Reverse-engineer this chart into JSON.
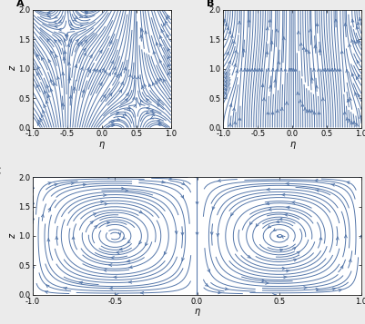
{
  "title_A": "A",
  "title_B": "B",
  "title_C": "C",
  "xlabel": "η",
  "ylabel": "z",
  "xlim": [
    -1.0,
    1.0
  ],
  "ylim": [
    0.0,
    2.0
  ],
  "xticks": [
    -1.0,
    -0.5,
    0.0,
    0.5,
    1.0
  ],
  "yticks": [
    0.0,
    0.5,
    1.0,
    1.5,
    2.0
  ],
  "xtick_labels": [
    "-1.0",
    "-0.5",
    "0.0",
    "0.5",
    "1.0"
  ],
  "ytick_labels": [
    "0.0",
    "0.5",
    "1.0",
    "1.5",
    "2.0"
  ],
  "stream_color": "#5577aa",
  "stream_linewidth": 0.7,
  "stream_density_A": 2.0,
  "stream_density_B": 2.0,
  "stream_density_C": 1.8,
  "stream_arrowsize": 0.5,
  "background_color": "#ebebeb",
  "panel_bg": "#ffffff",
  "figsize": [
    4.01,
    3.57
  ],
  "dpi": 100
}
